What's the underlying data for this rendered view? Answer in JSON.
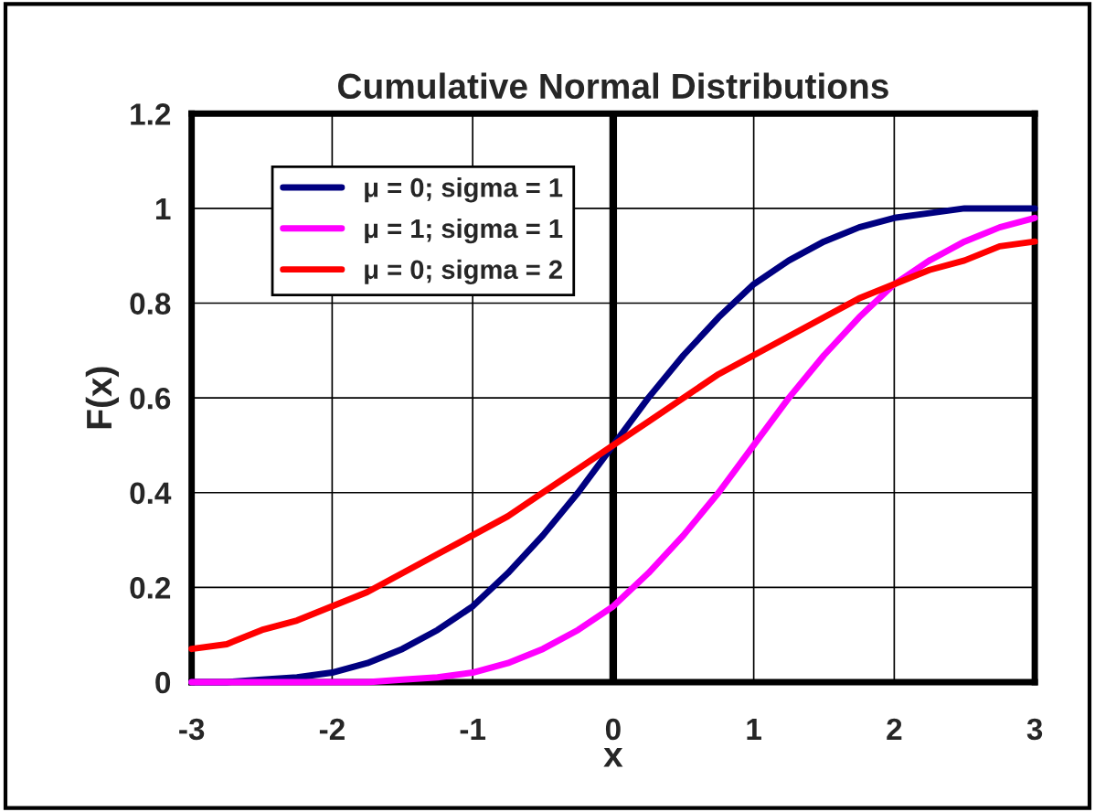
{
  "chart_data": {
    "type": "line",
    "title": "Cumulative Normal Distributions",
    "xlabel": "x",
    "ylabel": "F(x)",
    "x": [
      -3,
      -2.75,
      -2.5,
      -2.25,
      -2,
      -1.75,
      -1.5,
      -1.25,
      -1,
      -0.75,
      -0.5,
      -0.25,
      0,
      0.25,
      0.5,
      0.75,
      1,
      1.25,
      1.5,
      1.75,
      2,
      2.25,
      2.5,
      2.75,
      3
    ],
    "series": [
      {
        "name": "μ = 0; sigma = 1",
        "color": "#000080",
        "values": [
          0,
          0,
          0.005,
          0.01,
          0.02,
          0.04,
          0.07,
          0.11,
          0.16,
          0.23,
          0.31,
          0.4,
          0.5,
          0.6,
          0.69,
          0.77,
          0.84,
          0.89,
          0.93,
          0.96,
          0.98,
          0.99,
          1.0,
          1.0,
          1.0
        ]
      },
      {
        "name": "μ = 1; sigma = 1",
        "color": "#ff00ff",
        "values": [
          0,
          0,
          0,
          0,
          0,
          0,
          0.005,
          0.01,
          0.02,
          0.04,
          0.07,
          0.11,
          0.16,
          0.23,
          0.31,
          0.4,
          0.5,
          0.6,
          0.69,
          0.77,
          0.84,
          0.89,
          0.93,
          0.96,
          0.98
        ]
      },
      {
        "name": "μ = 0; sigma = 2",
        "color": "#ff0000",
        "values": [
          0.07,
          0.08,
          0.11,
          0.13,
          0.16,
          0.19,
          0.23,
          0.27,
          0.31,
          0.35,
          0.4,
          0.45,
          0.5,
          0.55,
          0.6,
          0.65,
          0.69,
          0.73,
          0.77,
          0.81,
          0.84,
          0.87,
          0.89,
          0.92,
          0.93
        ]
      }
    ],
    "xlim": [
      -3,
      3
    ],
    "xticks": [
      -3,
      -2,
      -1,
      0,
      1,
      2,
      3
    ],
    "ylim": [
      0,
      1.2
    ],
    "yticks": [
      0,
      0.2,
      0.4,
      0.6,
      0.8,
      1,
      1.2
    ],
    "ref_lines": [
      {
        "axis": "x",
        "value": 0,
        "label": null,
        "color": "#000000"
      }
    ],
    "grid": true,
    "legend": "top left",
    "marker": "none",
    "line_style": "solid"
  }
}
